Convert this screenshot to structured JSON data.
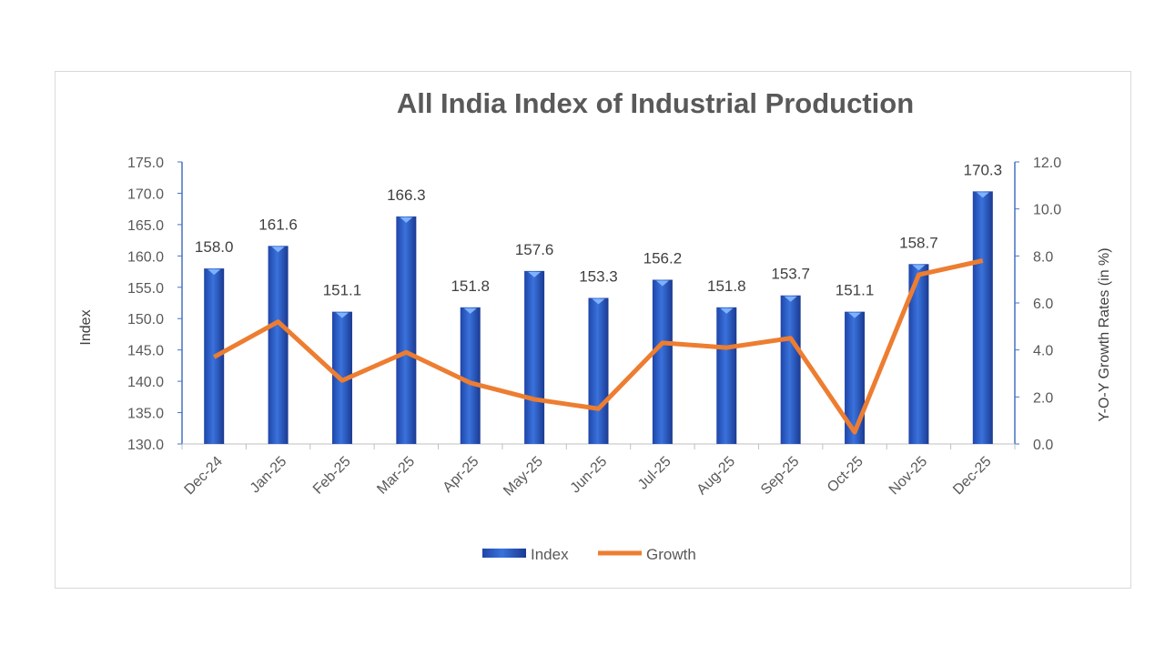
{
  "chart_data": {
    "type": "bar+line",
    "title": "All India Index of Industrial Production",
    "categories": [
      "Dec-24",
      "Jan-25",
      "Feb-25",
      "Mar-25",
      "Apr-25",
      "May-25",
      "Jun-25",
      "Jul-25",
      "Aug-25",
      "Sep-25",
      "Oct-25",
      "Nov-25",
      "Dec-25"
    ],
    "series": [
      {
        "name": "Index",
        "type": "bar",
        "axis": "left",
        "color": "#2e5fc9",
        "values": [
          158.0,
          161.6,
          151.1,
          166.3,
          151.8,
          157.6,
          153.3,
          156.2,
          151.8,
          153.7,
          151.1,
          158.7,
          170.3
        ],
        "data_labels": [
          "158.0",
          "161.6",
          "151.1",
          "166.3",
          "151.8",
          "157.6",
          "153.3",
          "156.2",
          "151.8",
          "153.7",
          "151.1",
          "158.7",
          "170.3"
        ]
      },
      {
        "name": "Growth",
        "type": "line",
        "axis": "right",
        "color": "#ed7d31",
        "values": [
          3.7,
          5.2,
          2.7,
          3.9,
          2.6,
          1.9,
          1.5,
          4.3,
          4.1,
          4.5,
          0.5,
          7.2,
          7.8
        ]
      }
    ],
    "ylabel": "Index",
    "ylabel_right": "Y-O-Y Growth Rates (in %)",
    "ylim": [
      130,
      175
    ],
    "yticks": [
      "130.0",
      "135.0",
      "140.0",
      "145.0",
      "150.0",
      "155.0",
      "160.0",
      "165.0",
      "170.0",
      "175.0"
    ],
    "ylim_right": [
      0,
      12
    ],
    "yticks_right": [
      "0.0",
      "2.0",
      "4.0",
      "6.0",
      "8.0",
      "10.0",
      "12.0"
    ],
    "grid": false,
    "legend_position": "bottom"
  }
}
